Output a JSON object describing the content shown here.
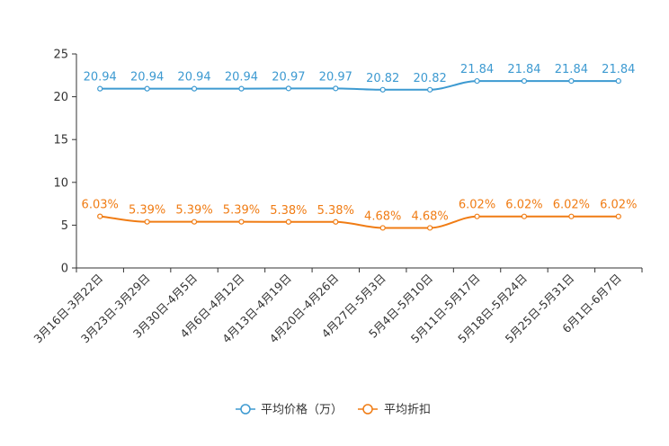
{
  "chart_data": {
    "type": "line",
    "title": "",
    "xlabel": "",
    "ylabel": "",
    "ylim": [
      0,
      25
    ],
    "yticks": [
      0,
      5,
      10,
      15,
      20,
      25
    ],
    "grid": false,
    "legend_position": "bottom-center",
    "categories": [
      "3月16日-3月22日",
      "3月23日-3月29日",
      "3月30日-4月5日",
      "4月6日-4月12日",
      "4月13日-4月19日",
      "4月20日-4月26日",
      "4月27日-5月3日",
      "5月4日-5月10日",
      "5月11日-5月17日",
      "5月18日-5月24日",
      "5月25日-5月31日",
      "6月1日-6月7日"
    ],
    "series": [
      {
        "name": "平均价格（万）",
        "color": "#3d9ad1",
        "values": [
          20.94,
          20.94,
          20.94,
          20.94,
          20.97,
          20.97,
          20.82,
          20.82,
          21.84,
          21.84,
          21.84,
          21.84
        ],
        "labels": [
          "20.94",
          "20.94",
          "20.94",
          "20.94",
          "20.97",
          "20.97",
          "20.82",
          "20.82",
          "21.84",
          "21.84",
          "21.84",
          "21.84"
        ]
      },
      {
        "name": "平均折扣",
        "color": "#f07c14",
        "values": [
          6.03,
          5.39,
          5.39,
          5.39,
          5.38,
          5.38,
          4.68,
          4.68,
          6.02,
          6.02,
          6.02,
          6.02
        ],
        "labels": [
          "6.03%",
          "5.39%",
          "5.39%",
          "5.39%",
          "5.38%",
          "5.38%",
          "4.68%",
          "4.68%",
          "6.02%",
          "6.02%",
          "6.02%",
          "6.02%"
        ]
      }
    ]
  }
}
